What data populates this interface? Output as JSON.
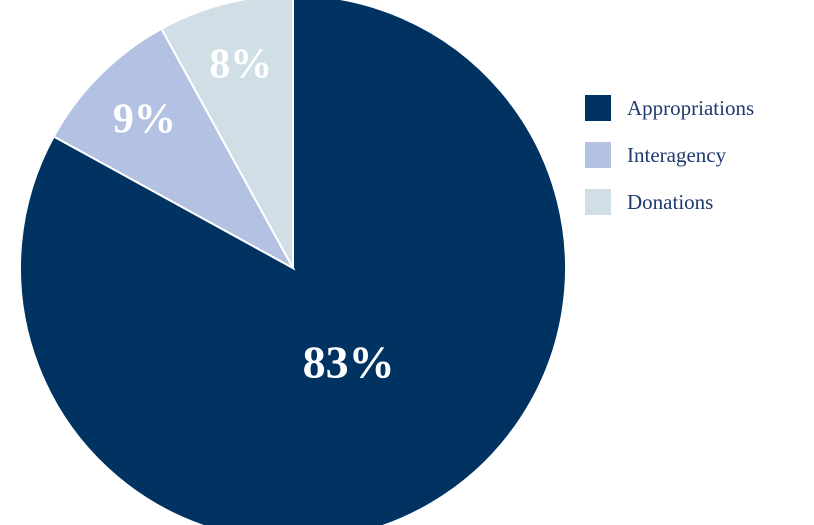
{
  "chart_data": {
    "type": "pie",
    "title": "",
    "legend_position": "right",
    "slices": [
      {
        "name": "Appropriations",
        "value": 83,
        "label": "83%",
        "color": "#003262"
      },
      {
        "name": "Interagency",
        "value": 9,
        "label": "9%",
        "color": "#b3c2e3"
      },
      {
        "name": "Donations",
        "value": 8,
        "label": "8%",
        "color": "#d0dee5"
      }
    ]
  }
}
